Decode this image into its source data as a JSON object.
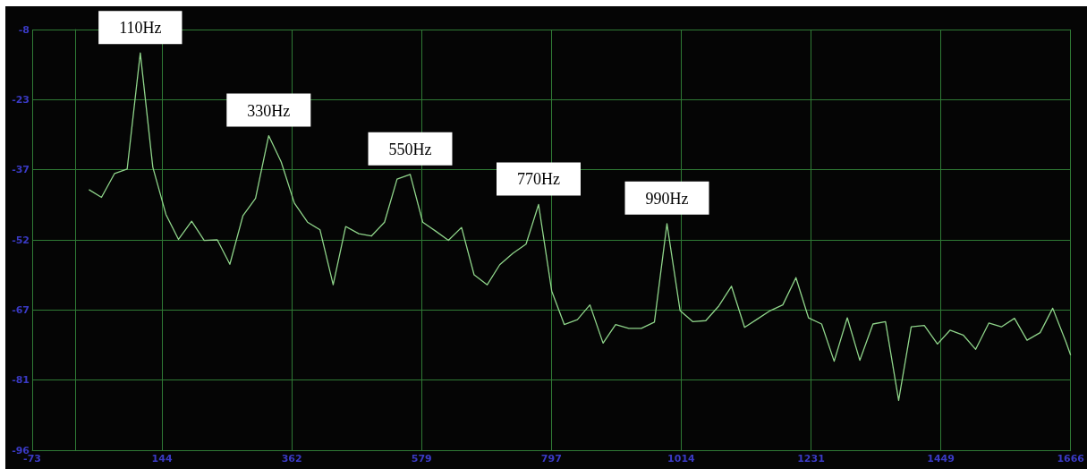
{
  "chart_data": {
    "type": "line",
    "color": "#8fd48a",
    "x": [
      22,
      43,
      65,
      86,
      108,
      129,
      151,
      172,
      194,
      215,
      237,
      258,
      280,
      301,
      323,
      344,
      366,
      388,
      409,
      431,
      452,
      474,
      495,
      517,
      538,
      560,
      581,
      603,
      624,
      646,
      667,
      689,
      710,
      732,
      754,
      775,
      797,
      818,
      840,
      861,
      883,
      904,
      926,
      947,
      969,
      990,
      1012,
      1033,
      1055,
      1077,
      1098,
      1120,
      1141,
      1163,
      1184,
      1206,
      1227,
      1249,
      1270,
      1292,
      1313,
      1335,
      1356,
      1378,
      1399,
      1421,
      1443,
      1464,
      1486,
      1507,
      1529,
      1550,
      1572,
      1593,
      1615,
      1636,
      1658,
      1666
    ],
    "values": [
      -41.5,
      -43.1,
      -38.1,
      -37.2,
      -12.9,
      -36.8,
      -46.7,
      -51.9,
      -48.1,
      -52.1,
      -52.0,
      -57.1,
      -46.9,
      -43.3,
      -30.2,
      -35.7,
      -44.3,
      -48.3,
      -49.9,
      -61.4,
      -49.2,
      -50.7,
      -51.2,
      -48.3,
      -39.3,
      -38.3,
      -48.3,
      -50.2,
      -52.1,
      -49.4,
      -59.3,
      -61.4,
      -57.2,
      -54.8,
      -52.9,
      -44.6,
      -62.7,
      -69.7,
      -68.7,
      -65.6,
      -73.6,
      -69.7,
      -70.5,
      -70.5,
      -69.2,
      -48.6,
      -66.8,
      -69.1,
      -68.9,
      -65.8,
      -61.7,
      -70.3,
      -68.6,
      -66.8,
      -65.6,
      -59.9,
      -68.3,
      -69.6,
      -77.4,
      -68.3,
      -77.2,
      -69.6,
      -69.1,
      -85.6,
      -70.2,
      -69.9,
      -73.8,
      -70.9,
      -71.9,
      -74.9,
      -69.4,
      -70.2,
      -68.4,
      -73.0,
      -71.4,
      -66.3,
      -73.3,
      -76.1
    ],
    "xlim": [
      -73,
      1666
    ],
    "ylim": [
      -96,
      -8
    ],
    "xticks": [
      -73,
      {
        "value": 144.38,
        "label": "144"
      },
      {
        "value": 361.75,
        "label": "362"
      },
      {
        "value": 579.13,
        "label": "579"
      },
      {
        "value": 796.5,
        "label": "797"
      },
      {
        "value": 1013.88,
        "label": "1014"
      },
      {
        "value": 1231.25,
        "label": "1231"
      },
      {
        "value": 1448.63,
        "label": "1449"
      },
      1666
    ],
    "yticks": [
      -96,
      {
        "value": -81.33,
        "label": "-81"
      },
      {
        "value": -66.67,
        "label": "-67"
      },
      -52,
      {
        "value": -37.33,
        "label": "-37"
      },
      {
        "value": -22.67,
        "label": "-23"
      },
      -8
    ],
    "grid": true,
    "annotations": [
      {
        "text": "110Hz",
        "x": 108,
        "y": -12.9
      },
      {
        "text": "330Hz",
        "x": 323,
        "y": -30.2
      },
      {
        "text": "550Hz",
        "x": 560,
        "y": -38.3
      },
      {
        "text": "770Hz",
        "x": 775,
        "y": -44.6
      },
      {
        "text": "990Hz",
        "x": 990,
        "y": -48.6
      }
    ]
  }
}
